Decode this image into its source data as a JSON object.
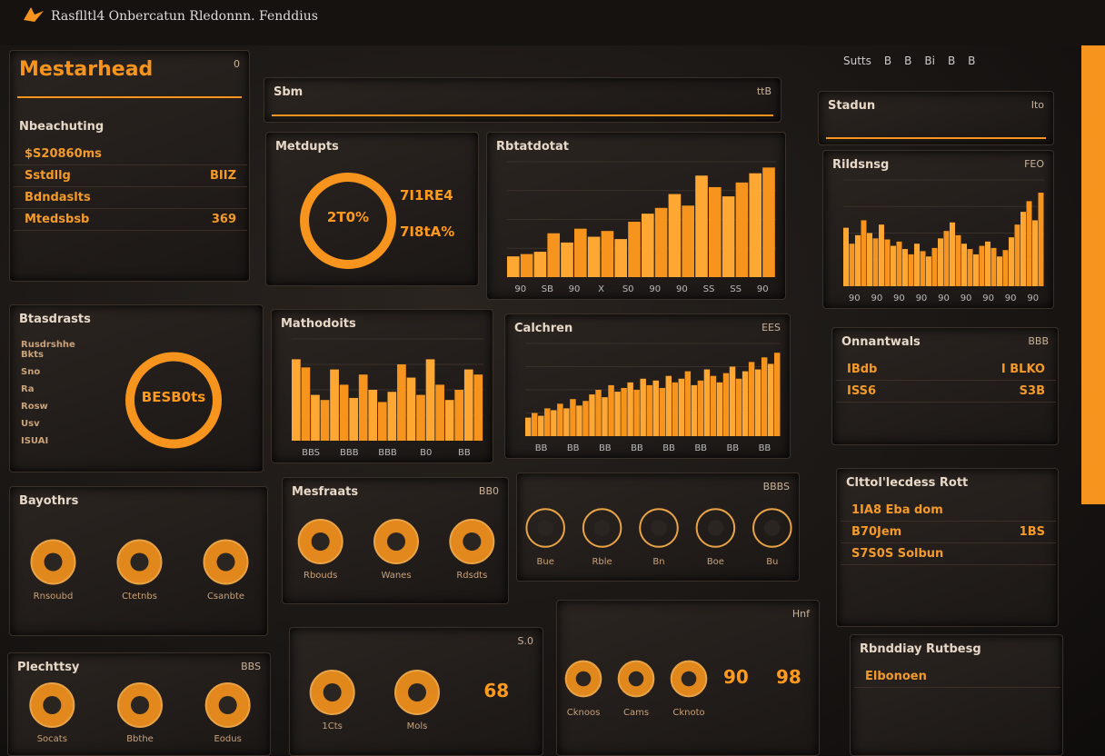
{
  "header": {
    "brand": "Rasflltl4 Onbercatun Rledonnn. Fenddius",
    "nav": [
      "Sutts",
      "B",
      "B",
      "Bi",
      "B",
      "B"
    ]
  },
  "panels": [
    {
      "title": "Mestarhead",
      "badge": "0",
      "subtitle": "Nbeachuting",
      "rows": [
        [
          "$S20860ms"
        ],
        [
          "Sstdllg",
          "BIIZ"
        ],
        [
          "Bdndaslts"
        ],
        [
          "Mtedsbsb",
          "369"
        ]
      ]
    },
    {
      "title": "Sbm",
      "badge": "ttB"
    },
    {
      "title": "Metdupts",
      "donut": "2T0%",
      "stats": [
        "7I1RE4",
        "7I8tA%"
      ]
    },
    {
      "title": "Rbtatdotat",
      "chart": {
        "values": [
          18,
          20,
          22,
          38,
          30,
          42,
          35,
          40,
          33,
          48,
          55,
          60,
          72,
          62,
          88,
          78,
          70,
          82,
          90,
          95
        ],
        "ylim": [
          0,
          100
        ],
        "x_labels": [
          "90",
          "SB",
          "90",
          "X",
          "S0",
          "90",
          "90",
          "SS",
          "SS",
          "90"
        ]
      }
    },
    {
      "title": "Stadun",
      "badge": "Ito"
    },
    {
      "title": "Rildsnsg",
      "badge": "FEO",
      "chart": {
        "values": [
          55,
          40,
          48,
          62,
          50,
          45,
          58,
          44,
          38,
          42,
          35,
          30,
          40,
          33,
          28,
          36,
          45,
          52,
          60,
          48,
          40,
          35,
          30,
          38,
          42,
          36,
          28,
          34,
          46,
          58,
          70,
          80,
          62,
          88
        ],
        "ylim": [
          0,
          100
        ],
        "x_labels": [
          "90",
          "90",
          "90",
          "90",
          "90",
          "90",
          "90",
          "90",
          "90"
        ]
      }
    },
    {
      "title": "Btasdrasts",
      "donut": "BESB0ts",
      "rows": [
        [
          "Rusdrshhe Bkts"
        ],
        [
          "Sno"
        ],
        [
          "Ra"
        ],
        [
          "Rosw"
        ],
        [
          "Usv"
        ],
        [
          "ISUAI"
        ]
      ]
    },
    {
      "title": "Mathodoits",
      "chart": {
        "values": [
          80,
          72,
          45,
          40,
          70,
          55,
          42,
          65,
          50,
          38,
          48,
          75,
          62,
          45,
          80,
          55,
          40,
          50,
          70,
          65
        ],
        "ylim": [
          0,
          100
        ],
        "x_labels": [
          "BBS",
          "BBB",
          "BBB",
          "B0",
          "BB"
        ]
      }
    },
    {
      "title": "Calchren",
      "badge": "EES",
      "chart": {
        "values": [
          20,
          25,
          22,
          30,
          28,
          35,
          30,
          40,
          33,
          38,
          45,
          50,
          42,
          55,
          48,
          52,
          58,
          50,
          62,
          55,
          60,
          52,
          65,
          58,
          62,
          70,
          55,
          60,
          72,
          65,
          58,
          68,
          75,
          62,
          70,
          80,
          72,
          85,
          78,
          90
        ],
        "ylim": [
          0,
          100
        ],
        "x_labels": [
          "BB",
          "BB",
          "BB",
          "BB",
          "BB",
          "BB",
          "BB",
          "BB"
        ]
      }
    },
    {
      "title": "Onnantwals",
      "badge": "BBB",
      "rows": [
        [
          "IBdb",
          "I BLKO"
        ],
        [
          "ISS6",
          "S3B"
        ]
      ]
    },
    {
      "title": "Bayothrs",
      "icons": [
        "Rnsoubd",
        "Ctetnbs",
        "Csanbte"
      ]
    },
    {
      "title": "Mesfraats",
      "badge": "BB0",
      "icons": [
        "Rbouds",
        "Wanes",
        "Rdsdts"
      ]
    },
    {
      "badge": "BBBS",
      "icons": [
        "Bue",
        "Rble",
        "Bn",
        "Boe",
        "Bu"
      ]
    },
    {
      "title": "Clttol'lecdess Rott",
      "rows": [
        [
          "1IA8 Eba dom"
        ],
        [
          "B70Jem",
          "1BS"
        ],
        [
          "S7S0S Solbun"
        ]
      ]
    },
    {
      "title": "Plechttsy",
      "badge": "BBS",
      "icons": [
        "Socats",
        "Bbthe",
        "Eodus"
      ]
    },
    {
      "badge": "S.0",
      "icons": [
        "1Cts",
        "Mols"
      ],
      "stats": [
        "68"
      ]
    },
    {
      "badge": "Hnf",
      "stats": [
        "90",
        "98"
      ],
      "icons": [
        "Cknoos",
        "Cams",
        "Cknoto"
      ]
    },
    {
      "title": "Rbnddiay Rutbesg",
      "rows": [
        [
          "Elbonoen"
        ]
      ]
    }
  ]
}
